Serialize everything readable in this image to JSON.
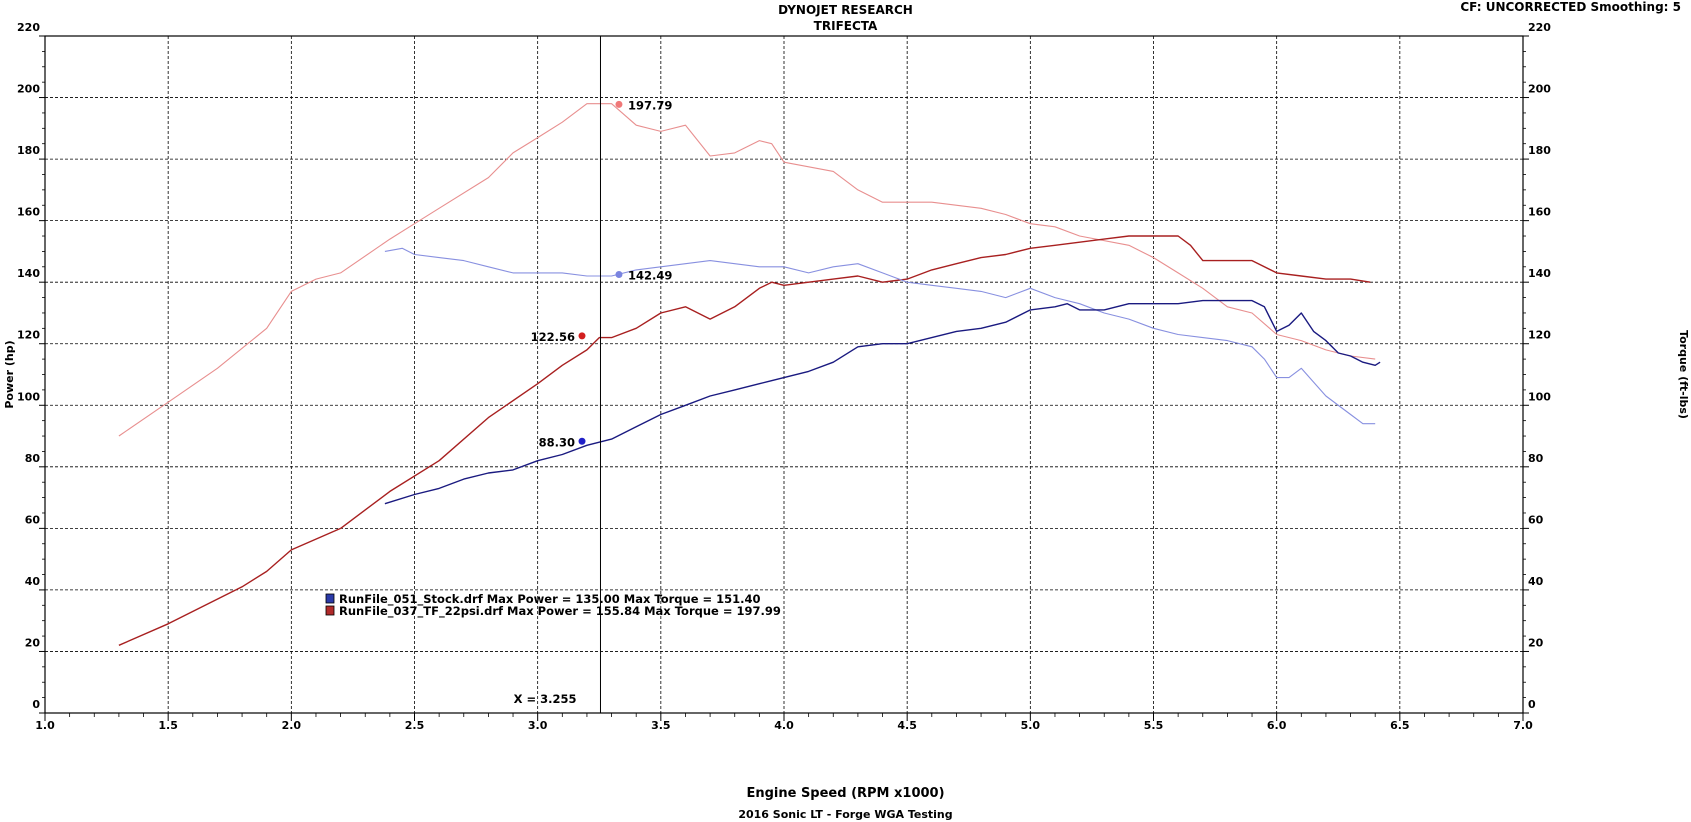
{
  "header": {
    "title": "DYNOJET RESEARCH",
    "subtitle": "TRIFECTA",
    "info": "CF: UNCORRECTED  Smoothing: 5"
  },
  "chart_data": {
    "type": "line",
    "title": "DYNOJET RESEARCH",
    "subtitle": "TRIFECTA",
    "footer": "2016 Sonic LT - Forge WGA Testing",
    "xlabel": "Engine Speed (RPM x1000)",
    "ylabel_left": "Power (hp)",
    "ylabel_right": "Torque (ft-lbs)",
    "xlim": [
      1.0,
      7.0
    ],
    "ylim": [
      0,
      220
    ],
    "x_ticks": [
      "1.0",
      "1.5",
      "2.0",
      "2.5",
      "3.0",
      "3.5",
      "4.0",
      "4.5",
      "5.0",
      "5.5",
      "6.0",
      "6.5",
      "7.0"
    ],
    "y_ticks": [
      "0",
      "20",
      "40",
      "60",
      "80",
      "100",
      "120",
      "140",
      "160",
      "180",
      "200",
      "220"
    ],
    "grid": true,
    "cursor": {
      "x": 3.255,
      "label": "X = 3.255"
    },
    "legend": {
      "placement": "lower-left",
      "entries": [
        {
          "text": "RunFile_051_Stock.drf Max Power = 135.00     Max Torque = 151.40",
          "color": "#2a3aa8"
        },
        {
          "text": "RunFile_037_TF_22psi.drf Max Power = 155.84     Max Torque = 197.99",
          "color": "#b02a2a"
        }
      ]
    },
    "markers": [
      {
        "x": 3.33,
        "y": 197.79,
        "label": "197.79",
        "color": "#f07878",
        "side": "right"
      },
      {
        "x": 3.33,
        "y": 142.49,
        "label": "142.49",
        "color": "#7a84e0",
        "side": "right"
      },
      {
        "x": 3.18,
        "y": 122.56,
        "label": "122.56",
        "color": "#d21f1f",
        "side": "left"
      },
      {
        "x": 3.18,
        "y": 88.3,
        "label": "88.30",
        "color": "#2020c8",
        "side": "left"
      }
    ],
    "series": [
      {
        "name": "RunFile_037_TF_22psi.drf Torque",
        "color": "#e88f8f",
        "width": 1.1,
        "x": [
          1.3,
          1.5,
          1.7,
          1.9,
          2.0,
          2.1,
          2.2,
          2.4,
          2.5,
          2.6,
          2.8,
          2.9,
          3.0,
          3.1,
          3.2,
          3.3,
          3.4,
          3.5,
          3.6,
          3.7,
          3.8,
          3.9,
          3.95,
          4.0,
          4.2,
          4.3,
          4.4,
          4.5,
          4.6,
          4.8,
          4.9,
          5.0,
          5.1,
          5.2,
          5.4,
          5.5,
          5.6,
          5.7,
          5.8,
          5.9,
          6.0,
          6.1,
          6.2,
          6.3,
          6.4
        ],
        "y": [
          90,
          101,
          112,
          125,
          137,
          141,
          143,
          154,
          159,
          164,
          174,
          182,
          187,
          192,
          198,
          198,
          191,
          189,
          191,
          181,
          182,
          186,
          185,
          179,
          176,
          170,
          166,
          166,
          166,
          164,
          162,
          159,
          158,
          155,
          152,
          148,
          143,
          138,
          132,
          130,
          123,
          121,
          118,
          116,
          115
        ]
      },
      {
        "name": "RunFile_037_TF_22psi.drf Power",
        "color": "#a82020",
        "width": 1.4,
        "x": [
          1.3,
          1.5,
          1.8,
          1.9,
          2.0,
          2.2,
          2.4,
          2.6,
          2.8,
          3.0,
          3.1,
          3.2,
          3.25,
          3.3,
          3.4,
          3.5,
          3.6,
          3.7,
          3.8,
          3.9,
          3.95,
          4.0,
          4.1,
          4.2,
          4.3,
          4.4,
          4.5,
          4.6,
          4.7,
          4.8,
          4.9,
          5.0,
          5.1,
          5.2,
          5.3,
          5.4,
          5.5,
          5.6,
          5.65,
          5.7,
          5.8,
          5.9,
          6.0,
          6.1,
          6.2,
          6.3,
          6.38
        ],
        "y": [
          22,
          29,
          41,
          46,
          53,
          60,
          72,
          82,
          96,
          107,
          113,
          118,
          122,
          122,
          125,
          130,
          132,
          128,
          132,
          138,
          140,
          139,
          140,
          141,
          142,
          140,
          141,
          144,
          146,
          148,
          149,
          151,
          152,
          153,
          154,
          155,
          155,
          155,
          152,
          147,
          147,
          147,
          143,
          142,
          141,
          141,
          140
        ]
      },
      {
        "name": "RunFile_051_Stock.drf Torque",
        "color": "#8890e0",
        "width": 1.1,
        "x": [
          2.38,
          2.45,
          2.5,
          2.6,
          2.7,
          2.8,
          2.9,
          3.0,
          3.1,
          3.2,
          3.3,
          3.4,
          3.5,
          3.6,
          3.7,
          3.8,
          3.9,
          4.0,
          4.1,
          4.2,
          4.3,
          4.4,
          4.5,
          4.6,
          4.7,
          4.8,
          4.9,
          5.0,
          5.1,
          5.2,
          5.3,
          5.4,
          5.5,
          5.6,
          5.7,
          5.8,
          5.9,
          5.95,
          6.0,
          6.05,
          6.1,
          6.2,
          6.3,
          6.35,
          6.4
        ],
        "y": [
          150,
          151,
          149,
          148,
          147,
          145,
          143,
          143,
          143,
          142,
          142,
          144,
          145,
          146,
          147,
          146,
          145,
          145,
          143,
          145,
          146,
          143,
          140,
          139,
          138,
          137,
          135,
          138,
          135,
          133,
          130,
          128,
          125,
          123,
          122,
          121,
          119,
          115,
          109,
          109,
          112,
          103,
          97,
          94,
          94
        ]
      },
      {
        "name": "RunFile_051_Stock.drf Power",
        "color": "#1a1a80",
        "width": 1.4,
        "x": [
          2.38,
          2.5,
          2.6,
          2.7,
          2.8,
          2.9,
          3.0,
          3.1,
          3.2,
          3.3,
          3.4,
          3.5,
          3.6,
          3.7,
          3.8,
          3.9,
          4.0,
          4.1,
          4.2,
          4.3,
          4.4,
          4.5,
          4.6,
          4.7,
          4.8,
          4.9,
          5.0,
          5.1,
          5.15,
          5.2,
          5.3,
          5.4,
          5.5,
          5.6,
          5.7,
          5.8,
          5.9,
          5.95,
          6.0,
          6.05,
          6.1,
          6.15,
          6.2,
          6.25,
          6.3,
          6.35,
          6.4,
          6.42
        ],
        "y": [
          68,
          71,
          73,
          76,
          78,
          79,
          82,
          84,
          87,
          89,
          93,
          97,
          100,
          103,
          105,
          107,
          109,
          111,
          114,
          119,
          120,
          120,
          122,
          124,
          125,
          127,
          131,
          132,
          133,
          131,
          131,
          133,
          133,
          133,
          134,
          134,
          134,
          132,
          124,
          126,
          130,
          124,
          121,
          117,
          116,
          114,
          113,
          114
        ]
      }
    ]
  }
}
